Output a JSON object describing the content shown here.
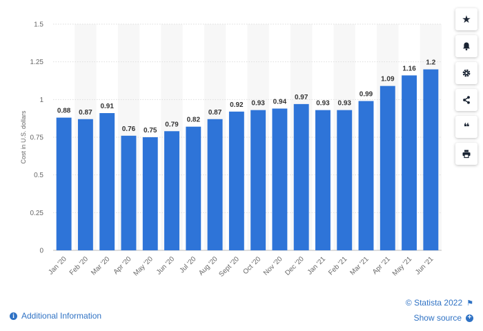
{
  "chart_data": {
    "type": "bar",
    "categories": [
      "Jan '20",
      "Feb '20",
      "Mar '20",
      "Apr '20",
      "May '20",
      "Jun '20",
      "Jul '20",
      "Aug '20",
      "Sept '20",
      "Oct '20",
      "Nov '20",
      "Dec '20",
      "Jan '21",
      "Feb '21",
      "Mar '21",
      "Apr '21",
      "May '21",
      "Jun '21"
    ],
    "values": [
      0.88,
      0.87,
      0.91,
      0.76,
      0.75,
      0.79,
      0.82,
      0.87,
      0.92,
      0.93,
      0.94,
      0.97,
      0.93,
      0.93,
      0.99,
      1.09,
      1.16,
      1.2
    ],
    "value_labels": [
      "0.88",
      "0.87",
      "0.91",
      "0.76",
      "0.75",
      "0.79",
      "0.82",
      "0.87",
      "0.92",
      "0.93",
      "0.94",
      "0.97",
      "0.93",
      "0.93",
      "0.99",
      "1.09",
      "1.16",
      "1.2"
    ],
    "ylabel": "Cost in U.S. dollars",
    "ylim": [
      0,
      1.5
    ],
    "yticks": [
      "0",
      "0.25",
      "0.5",
      "0.75",
      "1",
      "1.25",
      "1.5"
    ],
    "bar_color": "#2e74d8",
    "grid": true
  },
  "toolbar": {
    "icons": [
      "star-icon",
      "bell-icon",
      "gear-icon",
      "share-icon",
      "quote-icon",
      "print-icon"
    ]
  },
  "footer": {
    "additional_info": "Additional Information",
    "copyright": "© Statista 2022",
    "show_source": "Show source"
  }
}
